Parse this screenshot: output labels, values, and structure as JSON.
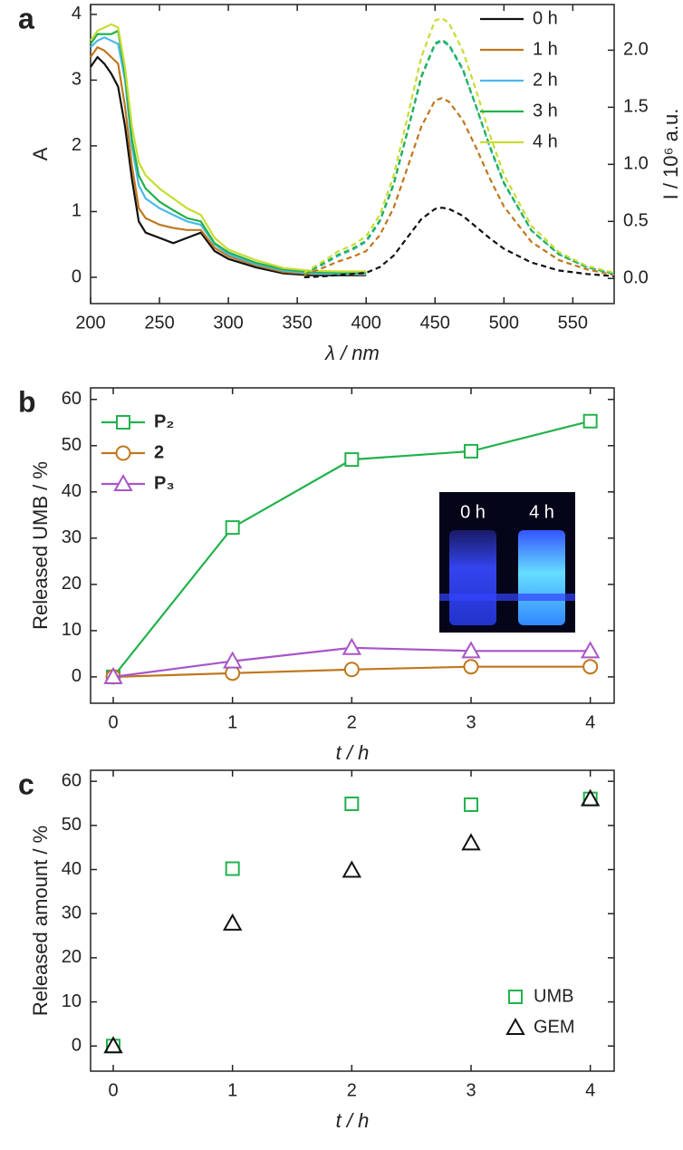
{
  "chart_data": [
    {
      "type": "line",
      "label": "a",
      "xlabel": "λ / nm",
      "ylabel": "A",
      "y2label": "I / 10⁶ a.u.",
      "xlim": [
        200,
        580
      ],
      "xticks": [
        200,
        250,
        300,
        350,
        400,
        450,
        500,
        550
      ],
      "ylim": [
        -0.4,
        4.15
      ],
      "yticks": [
        0,
        1,
        2,
        3,
        4
      ],
      "y2lim": [
        -0.22,
        2.4
      ],
      "y2ticks": [
        {
          "value": 0,
          "label": "0.0"
        },
        0.5,
        {
          "value": 1,
          "label": "1.0"
        },
        1.5,
        {
          "value": 2,
          "label": "2.0"
        }
      ],
      "legend": "upper right",
      "series": [
        {
          "name": "0 h",
          "color": "#111111",
          "x": [
            200,
            205,
            210,
            215,
            220,
            225,
            230,
            235,
            240,
            250,
            260,
            270,
            280,
            290,
            300,
            320,
            340,
            360,
            380,
            400
          ],
          "values": [
            3.2,
            3.35,
            3.25,
            3.1,
            2.9,
            2.3,
            1.5,
            0.85,
            0.68,
            0.6,
            0.52,
            0.6,
            0.68,
            0.4,
            0.28,
            0.15,
            0.06,
            0.03,
            0.03,
            0.03
          ]
        },
        {
          "name": "1 h",
          "color": "#c0771c",
          "x": [
            200,
            205,
            210,
            215,
            220,
            225,
            230,
            235,
            240,
            250,
            260,
            270,
            280,
            290,
            300,
            320,
            340,
            360,
            380,
            400
          ],
          "values": [
            3.35,
            3.5,
            3.45,
            3.35,
            3.25,
            2.6,
            1.7,
            1.05,
            0.9,
            0.8,
            0.75,
            0.72,
            0.72,
            0.45,
            0.32,
            0.18,
            0.08,
            0.05,
            0.05,
            0.04
          ]
        },
        {
          "name": "2 h",
          "color": "#4cb8ea",
          "x": [
            200,
            205,
            210,
            215,
            220,
            225,
            230,
            235,
            240,
            250,
            260,
            270,
            280,
            290,
            300,
            320,
            340,
            360,
            380,
            400
          ],
          "values": [
            3.5,
            3.6,
            3.65,
            3.6,
            3.55,
            3.0,
            2.0,
            1.4,
            1.2,
            1.05,
            0.95,
            0.85,
            0.8,
            0.5,
            0.35,
            0.2,
            0.1,
            0.06,
            0.05,
            0.05
          ]
        },
        {
          "name": "3 h",
          "color": "#22b24c",
          "x": [
            200,
            205,
            210,
            215,
            220,
            225,
            230,
            235,
            240,
            250,
            260,
            270,
            280,
            290,
            300,
            320,
            340,
            360,
            380,
            400
          ],
          "values": [
            3.55,
            3.7,
            3.7,
            3.7,
            3.75,
            3.1,
            2.1,
            1.55,
            1.35,
            1.15,
            1.02,
            0.9,
            0.85,
            0.52,
            0.38,
            0.22,
            0.12,
            0.08,
            0.07,
            0.07
          ]
        },
        {
          "name": "4 h",
          "color": "#c8dc32",
          "x": [
            200,
            205,
            210,
            215,
            220,
            225,
            230,
            235,
            240,
            250,
            260,
            270,
            280,
            290,
            300,
            320,
            340,
            360,
            380,
            400
          ],
          "values": [
            3.6,
            3.75,
            3.8,
            3.85,
            3.8,
            3.2,
            2.3,
            1.75,
            1.55,
            1.35,
            1.2,
            1.05,
            0.95,
            0.6,
            0.42,
            0.26,
            0.14,
            0.1,
            0.09,
            0.09
          ]
        },
        {
          "color": "#111111",
          "axis": "y2",
          "linestyle": "dashed",
          "x": [
            355,
            370,
            380,
            390,
            400,
            410,
            420,
            430,
            440,
            450,
            455,
            460,
            470,
            480,
            490,
            500,
            520,
            540,
            560,
            580
          ],
          "values": [
            0.01,
            0.02,
            0.03,
            0.04,
            0.05,
            0.1,
            0.2,
            0.36,
            0.52,
            0.61,
            0.62,
            0.61,
            0.55,
            0.45,
            0.35,
            0.26,
            0.14,
            0.07,
            0.04,
            0.02
          ]
        },
        {
          "color": "#c0771c",
          "axis": "y2",
          "linestyle": "dashed",
          "x": [
            355,
            370,
            380,
            390,
            400,
            410,
            420,
            430,
            440,
            450,
            455,
            460,
            470,
            480,
            490,
            500,
            520,
            540,
            560,
            580
          ],
          "values": [
            0.03,
            0.1,
            0.15,
            0.19,
            0.24,
            0.38,
            0.62,
            0.97,
            1.33,
            1.56,
            1.58,
            1.55,
            1.39,
            1.14,
            0.87,
            0.63,
            0.32,
            0.16,
            0.08,
            0.03
          ]
        },
        {
          "color": "#4cb8ea",
          "axis": "y2",
          "linestyle": "dashed",
          "x": [
            355,
            370,
            380,
            390,
            400,
            410,
            420,
            430,
            440,
            450,
            455,
            460,
            470,
            480,
            490,
            500,
            520,
            540,
            560,
            580
          ],
          "values": [
            0.04,
            0.13,
            0.2,
            0.25,
            0.32,
            0.5,
            0.82,
            1.28,
            1.76,
            2.05,
            2.08,
            2.04,
            1.83,
            1.5,
            1.14,
            0.83,
            0.42,
            0.21,
            0.1,
            0.04
          ]
        },
        {
          "color": "#22b24c",
          "axis": "y2",
          "linestyle": "dashed",
          "x": [
            355,
            370,
            380,
            390,
            400,
            410,
            420,
            430,
            440,
            450,
            455,
            460,
            470,
            480,
            490,
            500,
            520,
            540,
            560,
            580
          ],
          "values": [
            0.04,
            0.14,
            0.21,
            0.26,
            0.33,
            0.51,
            0.83,
            1.29,
            1.77,
            2.06,
            2.09,
            2.05,
            1.84,
            1.5,
            1.15,
            0.84,
            0.42,
            0.21,
            0.1,
            0.04
          ]
        },
        {
          "color": "#c8dc32",
          "axis": "y2",
          "linestyle": "dashed",
          "x": [
            355,
            370,
            380,
            390,
            400,
            410,
            420,
            430,
            440,
            450,
            455,
            460,
            470,
            480,
            490,
            500,
            520,
            540,
            560,
            580
          ],
          "values": [
            0.05,
            0.16,
            0.24,
            0.29,
            0.37,
            0.56,
            0.9,
            1.41,
            1.94,
            2.26,
            2.28,
            2.24,
            2.0,
            1.64,
            1.25,
            0.91,
            0.46,
            0.23,
            0.11,
            0.05
          ]
        }
      ]
    },
    {
      "type": "line",
      "label": "b",
      "xlabel": "t / h",
      "ylabel": "Released UMB / %",
      "x": [
        0,
        1,
        2,
        3,
        4
      ],
      "xlim": [
        -0.19,
        4.2
      ],
      "xticks": [
        0,
        1,
        2,
        3,
        4
      ],
      "ylim": [
        -5.7,
        62.5
      ],
      "yticks": [
        0,
        10,
        20,
        30,
        40,
        50,
        60
      ],
      "legend": "upper left",
      "inset_labels": [
        "0 h",
        "4 h"
      ],
      "series": [
        {
          "name": "P₂",
          "color": "#22b24c",
          "marker": "square",
          "values": [
            0,
            32.3,
            47,
            48.8,
            55.3
          ]
        },
        {
          "name": "2",
          "color": "#c0771c",
          "marker": "circle",
          "values": [
            0,
            0.8,
            1.6,
            2.2,
            2.2
          ]
        },
        {
          "name": "P₃",
          "color": "#a855c8",
          "marker": "triangle",
          "values": [
            0,
            3.4,
            6.3,
            5.6,
            5.6
          ]
        }
      ]
    },
    {
      "type": "scatter",
      "label": "c",
      "xlabel": "t / h",
      "ylabel": "Released amount / %",
      "x": [
        0,
        1,
        2,
        3,
        4
      ],
      "xlim": [
        -0.19,
        4.2
      ],
      "xticks": [
        0,
        1,
        2,
        3,
        4
      ],
      "ylim": [
        -5.7,
        62.5
      ],
      "yticks": [
        0,
        10,
        20,
        30,
        40,
        50,
        60
      ],
      "legend": "lower right",
      "series": [
        {
          "name": "UMB",
          "color": "#22b24c",
          "marker": "square",
          "values": [
            0,
            40.2,
            54.9,
            54.7,
            56
          ]
        },
        {
          "name": "GEM",
          "color": "#111111",
          "marker": "triangle",
          "values": [
            0,
            27.8,
            39.8,
            46,
            56
          ]
        }
      ]
    }
  ]
}
